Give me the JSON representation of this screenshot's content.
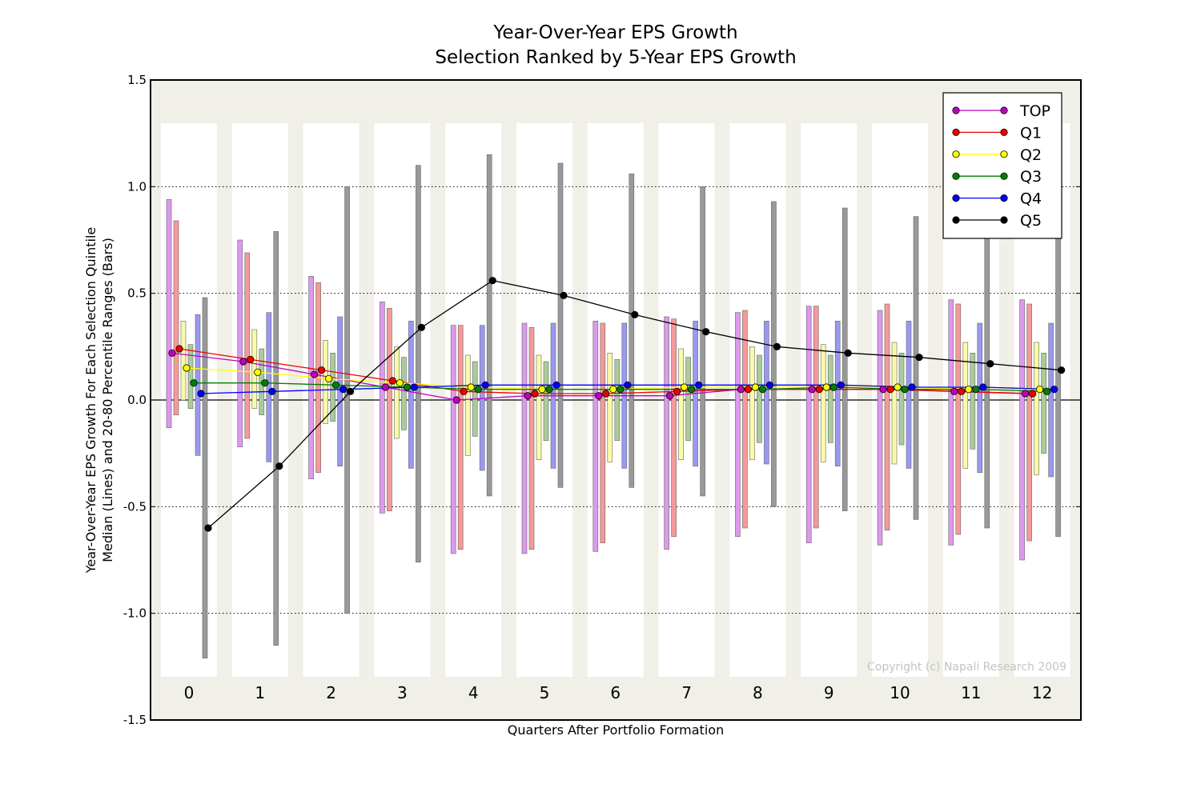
{
  "chart_data": {
    "type": "line",
    "title": "Year-Over-Year EPS Growth",
    "subtitle": "Selection Ranked by 5-Year EPS Growth",
    "xlabel": "Quarters After Portfolio Formation",
    "ylabel_line1": "Year-Over-Year EPS Growth For Each Selection Quintile",
    "ylabel_line2": "Median (Lines) and 20-80 Percentile Ranges (Bars)",
    "copyright": "Copyright (c) Napali Research 2009",
    "ylim": [
      -1.5,
      1.5
    ],
    "yticks": [
      {
        "v": 1.5,
        "label": "1.5"
      },
      {
        "v": 1.0,
        "label": "1.0"
      },
      {
        "v": 0.5,
        "label": "0.5"
      },
      {
        "v": 0.0,
        "label": "0.0"
      },
      {
        "v": -0.5,
        "label": "-0.5"
      },
      {
        "v": -1.0,
        "label": "-1.0"
      },
      {
        "v": -1.5,
        "label": "-1.5"
      }
    ],
    "categories": [
      "0",
      "1",
      "2",
      "3",
      "4",
      "5",
      "6",
      "7",
      "8",
      "9",
      "10",
      "11",
      "12"
    ],
    "grid": "dotted horizontal at 1.0, 0.5, -0.5, -1.0",
    "legend_position": "top-right",
    "series": [
      {
        "name": "TOP",
        "color": "#c000c0",
        "bar_color": "#dd99ee",
        "median": [
          0.22,
          0.18,
          0.12,
          0.06,
          0.0,
          0.02,
          0.02,
          0.02,
          0.05,
          0.05,
          0.05,
          0.04,
          0.03
        ],
        "p20": [
          -0.13,
          -0.22,
          -0.37,
          -0.53,
          -0.72,
          -0.72,
          -0.71,
          -0.7,
          -0.64,
          -0.67,
          -0.68,
          -0.68,
          -0.75
        ],
        "p80": [
          0.94,
          0.75,
          0.58,
          0.46,
          0.35,
          0.36,
          0.37,
          0.39,
          0.41,
          0.44,
          0.42,
          0.47,
          0.47
        ]
      },
      {
        "name": "Q1",
        "color": "#ee0000",
        "bar_color": "#f59999",
        "median": [
          0.24,
          0.19,
          0.14,
          0.09,
          0.04,
          0.03,
          0.03,
          0.04,
          0.05,
          0.05,
          0.05,
          0.04,
          0.03
        ],
        "p20": [
          -0.07,
          -0.18,
          -0.34,
          -0.52,
          -0.7,
          -0.7,
          -0.67,
          -0.64,
          -0.6,
          -0.6,
          -0.61,
          -0.63,
          -0.66
        ],
        "p80": [
          0.84,
          0.69,
          0.55,
          0.43,
          0.35,
          0.34,
          0.36,
          0.38,
          0.42,
          0.44,
          0.45,
          0.45,
          0.45
        ]
      },
      {
        "name": "Q2",
        "color": "#ffff00",
        "bar_color": "#fafaa8",
        "median": [
          0.15,
          0.13,
          0.1,
          0.08,
          0.06,
          0.05,
          0.05,
          0.06,
          0.06,
          0.06,
          0.06,
          0.05,
          0.05
        ],
        "p20": [
          0.0,
          -0.04,
          -0.11,
          -0.18,
          -0.26,
          -0.28,
          -0.29,
          -0.28,
          -0.28,
          -0.29,
          -0.3,
          -0.32,
          -0.35
        ],
        "p80": [
          0.37,
          0.33,
          0.28,
          0.25,
          0.21,
          0.21,
          0.22,
          0.24,
          0.25,
          0.26,
          0.27,
          0.27,
          0.27
        ]
      },
      {
        "name": "Q3",
        "color": "#008000",
        "bar_color": "#aacc99",
        "median": [
          0.08,
          0.08,
          0.07,
          0.06,
          0.05,
          0.05,
          0.05,
          0.05,
          0.05,
          0.06,
          0.05,
          0.05,
          0.04
        ],
        "p20": [
          -0.04,
          -0.07,
          -0.1,
          -0.14,
          -0.17,
          -0.19,
          -0.19,
          -0.19,
          -0.2,
          -0.2,
          -0.21,
          -0.23,
          -0.25
        ],
        "p80": [
          0.26,
          0.24,
          0.22,
          0.2,
          0.18,
          0.18,
          0.19,
          0.2,
          0.21,
          0.21,
          0.22,
          0.22,
          0.22
        ]
      },
      {
        "name": "Q4",
        "color": "#0000ff",
        "bar_color": "#9999f2",
        "median": [
          0.03,
          0.04,
          0.05,
          0.06,
          0.07,
          0.07,
          0.07,
          0.07,
          0.07,
          0.07,
          0.06,
          0.06,
          0.05
        ],
        "p20": [
          -0.26,
          -0.29,
          -0.31,
          -0.32,
          -0.33,
          -0.32,
          -0.32,
          -0.31,
          -0.3,
          -0.31,
          -0.32,
          -0.34,
          -0.36
        ],
        "p80": [
          0.4,
          0.41,
          0.39,
          0.37,
          0.35,
          0.36,
          0.36,
          0.37,
          0.37,
          0.37,
          0.37,
          0.36,
          0.36
        ]
      },
      {
        "name": "Q5",
        "color": "#000000",
        "bar_color": "#999999",
        "median": [
          -0.6,
          -0.31,
          0.04,
          0.34,
          0.56,
          0.49,
          0.4,
          0.32,
          0.25,
          0.22,
          0.2,
          0.17,
          0.14
        ],
        "p20": [
          -1.21,
          -1.15,
          -1.0,
          -0.76,
          -0.45,
          -0.41,
          -0.41,
          -0.45,
          -0.5,
          -0.52,
          -0.56,
          -0.6,
          -0.64
        ],
        "p80": [
          0.48,
          0.79,
          1.0,
          1.1,
          1.15,
          1.11,
          1.06,
          1.0,
          0.93,
          0.9,
          0.86,
          0.82,
          0.8
        ]
      }
    ]
  }
}
